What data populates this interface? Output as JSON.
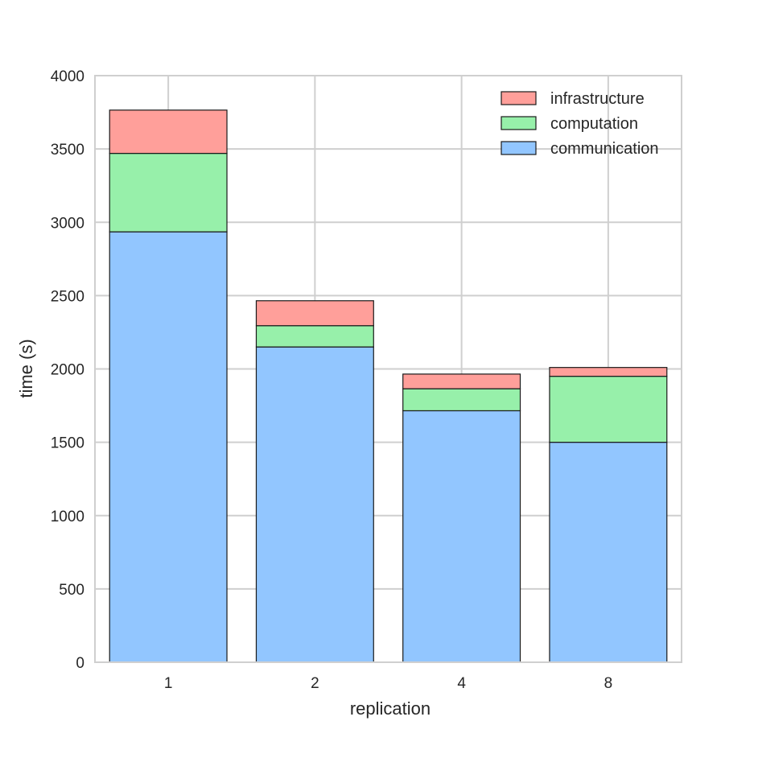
{
  "chart_data": {
    "type": "bar",
    "stacked": true,
    "categories": [
      "1",
      "2",
      "4",
      "8"
    ],
    "series": [
      {
        "name": "communication",
        "color": "#92c6ff",
        "values": [
          2935,
          2150,
          1715,
          1500
        ]
      },
      {
        "name": "computation",
        "color": "#97f0aa",
        "values": [
          535,
          145,
          150,
          450
        ]
      },
      {
        "name": "infrastructure",
        "color": "#ff9f9a",
        "values": [
          295,
          170,
          100,
          60
        ]
      }
    ],
    "title": "",
    "xlabel": "replication",
    "ylabel": "time (s)",
    "ylim": [
      0,
      4000
    ],
    "yticks": [
      "0",
      "500",
      "1000",
      "1500",
      "2000",
      "2500",
      "3000",
      "3500",
      "4000"
    ],
    "grid": true,
    "legend_position": "top-right"
  }
}
